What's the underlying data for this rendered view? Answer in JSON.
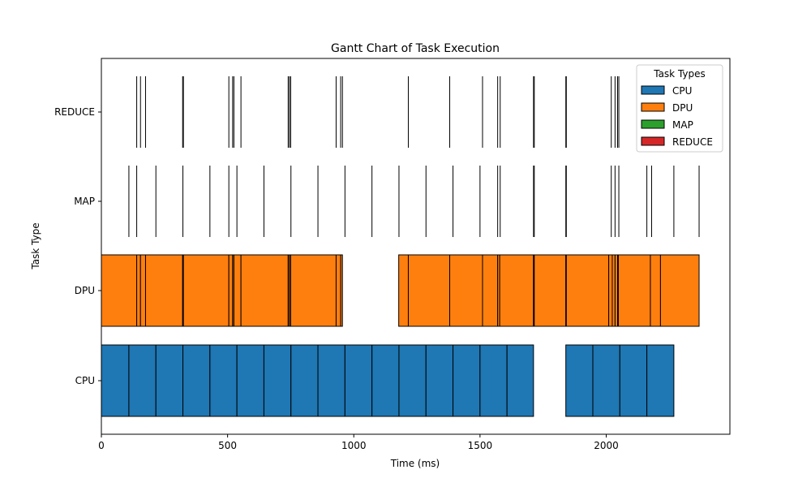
{
  "chart_data": {
    "type": "gantt",
    "title": "Gantt Chart of Task Execution",
    "xlabel": "Time (ms)",
    "ylabel": "Task Type",
    "xlim": [
      0,
      2490
    ],
    "xticks": [
      0,
      500,
      1000,
      1500,
      2000
    ],
    "categories": [
      "CPU",
      "DPU",
      "MAP",
      "REDUCE"
    ],
    "legend": {
      "title": "Task Types",
      "placement": "top-right",
      "entries": [
        "CPU",
        "DPU",
        "MAP",
        "REDUCE"
      ]
    },
    "colors": {
      "CPU": "#1f77b4",
      "DPU": "#ff7f0e",
      "MAP": "#2ca02c",
      "REDUCE": "#d62728",
      "edge": "#000000"
    },
    "series": [
      {
        "name": "CPU",
        "boundaries": [
          0,
          109,
          216,
          323,
          430,
          537,
          644,
          751,
          858,
          965,
          1072,
          1179,
          1286,
          1393,
          1500,
          1607,
          1712,
          null,
          1840,
          1947,
          2054,
          2161,
          2268,
          null,
          2368,
          2368
        ]
      },
      {
        "name": "DPU",
        "boundaries": [
          0,
          140,
          155,
          175,
          322,
          325,
          505,
          520,
          525,
          553,
          740,
          745,
          750,
          930,
          948,
          955,
          null,
          1178,
          1216,
          1380,
          1510,
          1570,
          1578,
          1712,
          1715,
          1840,
          1842,
          2010,
          2024,
          2035,
          2045,
          2048,
          2175,
          2215,
          2368
        ]
      },
      {
        "name": "MAP",
        "events": [
          109,
          140,
          216,
          323,
          430,
          505,
          537,
          644,
          751,
          858,
          965,
          1072,
          1179,
          1286,
          1393,
          1500,
          1570,
          1580,
          1712,
          1715,
          1840,
          1842,
          2020,
          2035,
          2050,
          2161,
          2180,
          2268,
          2368
        ]
      },
      {
        "name": "REDUCE",
        "events": [
          0,
          140,
          155,
          175,
          322,
          325,
          505,
          520,
          525,
          553,
          740,
          745,
          750,
          930,
          948,
          955,
          1216,
          1380,
          1510,
          1570,
          1580,
          1712,
          1715,
          1840,
          1842,
          2020,
          2035,
          2045,
          2050
        ]
      }
    ]
  }
}
